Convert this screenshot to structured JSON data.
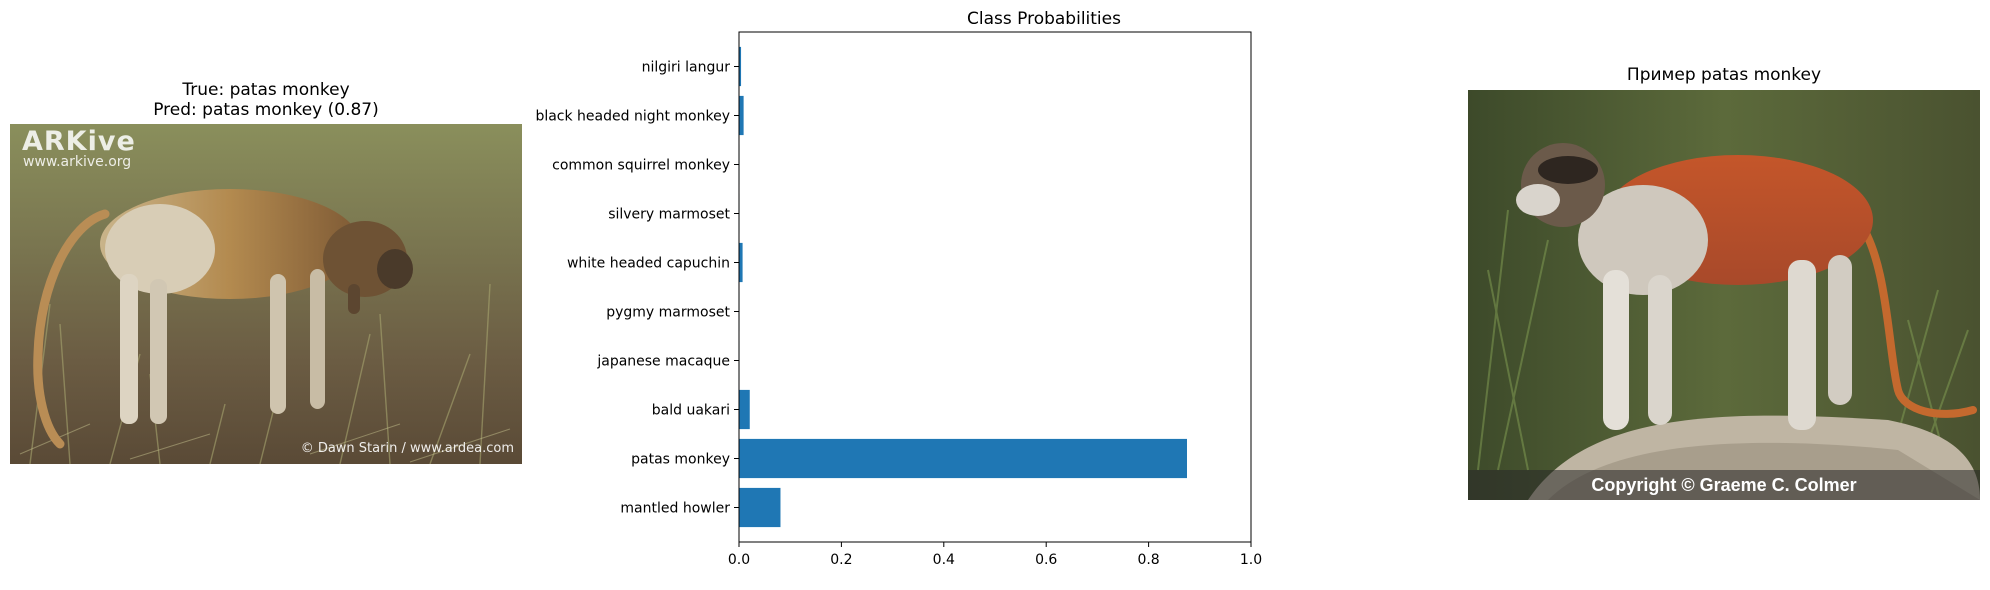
{
  "left_panel": {
    "title_line1": "True: patas monkey",
    "title_line2": "Pred: patas monkey (0.87)",
    "watermark_logo": "ARKive",
    "watermark_url": "www.arkive.org",
    "credit": "© Dawn Starin / www.ardea.com"
  },
  "right_panel": {
    "title": "Пример patas monkey",
    "copyright": "Copyright © Graeme C. Colmer"
  },
  "colors": {
    "bar": "#1f77b4"
  },
  "chart_data": {
    "type": "bar",
    "orientation": "horizontal",
    "title": "Class Probabilities",
    "xlabel": "",
    "ylabel": "",
    "xlim": [
      0,
      1.0
    ],
    "xticks": [
      0.0,
      0.2,
      0.4,
      0.6,
      0.8,
      1.0
    ],
    "xtick_labels": [
      "0.0",
      "0.2",
      "0.4",
      "0.6",
      "0.8",
      "1.0"
    ],
    "categories": [
      "nilgiri langur",
      "black headed night monkey",
      "common squirrel monkey",
      "silvery marmoset",
      "white headed capuchin",
      "pygmy marmoset",
      "japanese macaque",
      "bald uakari",
      "patas monkey",
      "mantled howler"
    ],
    "values": [
      0.004,
      0.009,
      0.001,
      0.001,
      0.007,
      0.001,
      0.001,
      0.021,
      0.875,
      0.081
    ],
    "grid": false
  }
}
